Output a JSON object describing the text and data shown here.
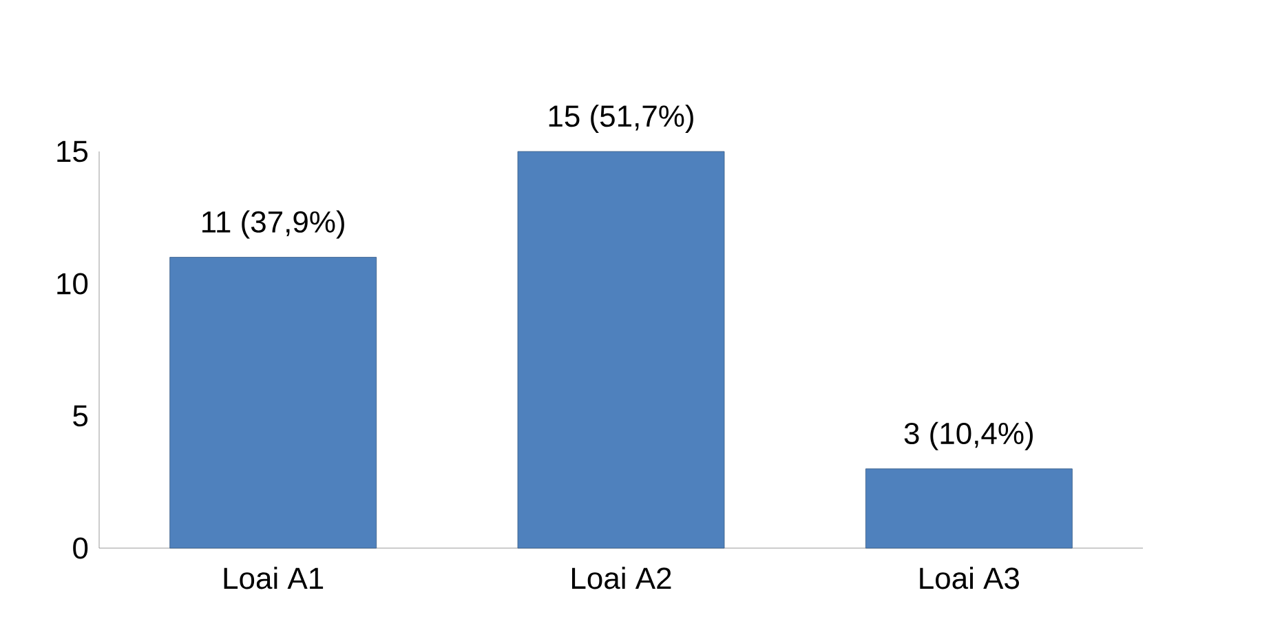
{
  "chart_data": {
    "type": "bar",
    "categories": [
      "Loai A1",
      "Loai A2",
      "Loai A3"
    ],
    "values": [
      11,
      15,
      3
    ],
    "value_labels": [
      "11 (37,9%)",
      "15 (51,7%)",
      "3 (10,4%)"
    ],
    "color": "#4f81bd",
    "ylim": [
      0,
      15
    ],
    "yticks": [
      0,
      5,
      10,
      15
    ],
    "grid": false
  }
}
